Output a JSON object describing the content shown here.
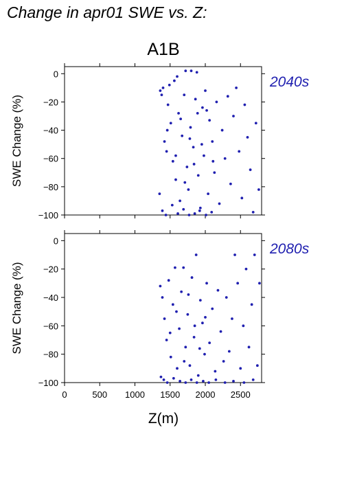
{
  "figure_title": "Change in apr01 SWE vs. Z:",
  "scenario_label": "A1B",
  "x_axis_label": "Z(m)",
  "colors": {
    "points": "#2020b0",
    "label": "#2020b0",
    "axes": "#000000"
  },
  "chart_data": [
    {
      "type": "scatter",
      "period": "2040s",
      "ylabel": "SWE Change (%)",
      "xlabel": "",
      "xlim": [
        0,
        2800
      ],
      "ylim": [
        -100,
        5
      ],
      "x_ticks": [
        0,
        500,
        1000,
        1500,
        2000,
        2500
      ],
      "y_ticks": [
        0,
        -20,
        -40,
        -60,
        -80,
        -100
      ],
      "grid": false,
      "x_range_of_points": [
        1340,
        2780
      ],
      "points": [
        [
          1360,
          -12
        ],
        [
          1380,
          -15
        ],
        [
          1400,
          -10
        ],
        [
          1420,
          -48
        ],
        [
          1450,
          -55
        ],
        [
          1470,
          -22
        ],
        [
          1490,
          -8
        ],
        [
          1510,
          -35
        ],
        [
          1540,
          -62
        ],
        [
          1560,
          -5
        ],
        [
          1580,
          -75
        ],
        [
          1600,
          -2
        ],
        [
          1620,
          -28
        ],
        [
          1640,
          -90
        ],
        [
          1670,
          -44
        ],
        [
          1700,
          -15
        ],
        [
          1720,
          2
        ],
        [
          1740,
          -66
        ],
        [
          1760,
          -82
        ],
        [
          1790,
          -38
        ],
        [
          1800,
          2
        ],
        [
          1830,
          -52
        ],
        [
          1860,
          -18
        ],
        [
          1880,
          1
        ],
        [
          1900,
          -72
        ],
        [
          1930,
          -95
        ],
        [
          1960,
          -24
        ],
        [
          1980,
          -58
        ],
        [
          2000,
          -12
        ],
        [
          2040,
          -85
        ],
        [
          2060,
          -33
        ],
        [
          2100,
          -48
        ],
        [
          2130,
          -70
        ],
        [
          2160,
          -20
        ],
        [
          2200,
          -92
        ],
        [
          2240,
          -40
        ],
        [
          2280,
          -60
        ],
        [
          2320,
          -16
        ],
        [
          2360,
          -78
        ],
        [
          2400,
          -30
        ],
        [
          2440,
          -10
        ],
        [
          2480,
          -55
        ],
        [
          2520,
          -88
        ],
        [
          2560,
          -22
        ],
        [
          2600,
          -45
        ],
        [
          2640,
          -68
        ],
        [
          2680,
          -98
        ],
        [
          2720,
          -35
        ],
        [
          2760,
          -82
        ],
        [
          1350,
          -85
        ],
        [
          1390,
          -97
        ],
        [
          1440,
          -100
        ],
        [
          1530,
          -93
        ],
        [
          1610,
          -99
        ],
        [
          1690,
          -96
        ],
        [
          1770,
          -100
        ],
        [
          1850,
          -99
        ],
        [
          1920,
          -97
        ],
        [
          2010,
          -100
        ],
        [
          2090,
          -98
        ],
        [
          1460,
          -40
        ],
        [
          1580,
          -58
        ],
        [
          1650,
          -32
        ],
        [
          1710,
          -77
        ],
        [
          1780,
          -46
        ],
        [
          1840,
          -64
        ],
        [
          1890,
          -28
        ],
        [
          1950,
          -50
        ],
        [
          2020,
          -26
        ],
        [
          2110,
          -62
        ]
      ]
    },
    {
      "type": "scatter",
      "period": "2080s",
      "ylabel": "SWE Change (%)",
      "xlabel": "Z(m)",
      "xlim": [
        0,
        2800
      ],
      "ylim": [
        -100,
        5
      ],
      "x_ticks": [
        0,
        500,
        1000,
        1500,
        2000,
        2500
      ],
      "y_ticks": [
        0,
        -20,
        -40,
        -60,
        -80,
        -100
      ],
      "grid": false,
      "x_range_of_points": [
        1340,
        2780
      ],
      "points": [
        [
          1360,
          -32
        ],
        [
          1390,
          -40
        ],
        [
          1420,
          -55
        ],
        [
          1450,
          -70
        ],
        [
          1480,
          -28
        ],
        [
          1510,
          -82
        ],
        [
          1540,
          -45
        ],
        [
          1570,
          -19
        ],
        [
          1600,
          -90
        ],
        [
          1630,
          -62
        ],
        [
          1660,
          -36
        ],
        [
          1690,
          -19
        ],
        [
          1720,
          -75
        ],
        [
          1750,
          -52
        ],
        [
          1780,
          -88
        ],
        [
          1810,
          -26
        ],
        [
          1840,
          -68
        ],
        [
          1870,
          -10
        ],
        [
          1900,
          -95
        ],
        [
          1930,
          -42
        ],
        [
          1960,
          -58
        ],
        [
          1990,
          -80
        ],
        [
          2020,
          -30
        ],
        [
          2060,
          -72
        ],
        [
          2100,
          -48
        ],
        [
          2140,
          -92
        ],
        [
          2180,
          -35
        ],
        [
          2220,
          -64
        ],
        [
          2260,
          -85
        ],
        [
          2300,
          -40
        ],
        [
          2340,
          -78
        ],
        [
          2380,
          -55
        ],
        [
          2420,
          -10
        ],
        [
          2460,
          -30
        ],
        [
          2500,
          -90
        ],
        [
          2540,
          -60
        ],
        [
          2580,
          -20
        ],
        [
          2620,
          -75
        ],
        [
          2660,
          -45
        ],
        [
          2700,
          -10
        ],
        [
          2740,
          -88
        ],
        [
          2770,
          -30
        ],
        [
          1370,
          -96
        ],
        [
          1410,
          -98
        ],
        [
          1460,
          -100
        ],
        [
          1550,
          -97
        ],
        [
          1640,
          -99
        ],
        [
          1720,
          -100
        ],
        [
          1800,
          -98
        ],
        [
          1880,
          -100
        ],
        [
          1970,
          -99
        ],
        [
          2050,
          -100
        ],
        [
          2150,
          -98
        ],
        [
          2280,
          -100
        ],
        [
          2400,
          -99
        ],
        [
          2550,
          -100
        ],
        [
          2680,
          -98
        ],
        [
          1500,
          -65
        ],
        [
          1590,
          -50
        ],
        [
          1700,
          -85
        ],
        [
          1760,
          -38
        ],
        [
          1850,
          -60
        ],
        [
          1920,
          -76
        ],
        [
          2000,
          -54
        ]
      ]
    }
  ]
}
